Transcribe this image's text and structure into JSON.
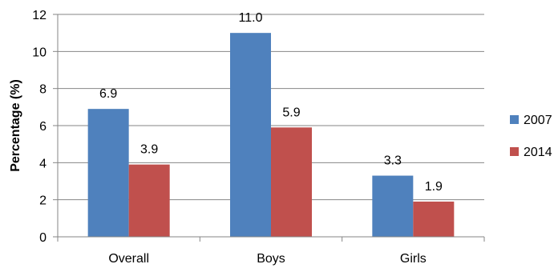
{
  "chart_data": {
    "type": "bar",
    "title": "",
    "xlabel": "",
    "ylabel": "Percentage (%)",
    "ylim": [
      0,
      12
    ],
    "yticks": [
      0,
      2,
      4,
      6,
      8,
      10,
      12
    ],
    "categories": [
      "Overall",
      "Boys",
      "Girls"
    ],
    "series": [
      {
        "name": "2007",
        "values": [
          6.9,
          11.0,
          3.3
        ],
        "labels": [
          "6.9",
          "11.0",
          "3.3"
        ],
        "color": "#4F81BD"
      },
      {
        "name": "2014",
        "values": [
          3.9,
          5.9,
          1.9
        ],
        "labels": [
          "3.9",
          "5.9",
          "1.9"
        ],
        "color": "#C0504D"
      }
    ],
    "grid": true,
    "legend_position": "right"
  }
}
